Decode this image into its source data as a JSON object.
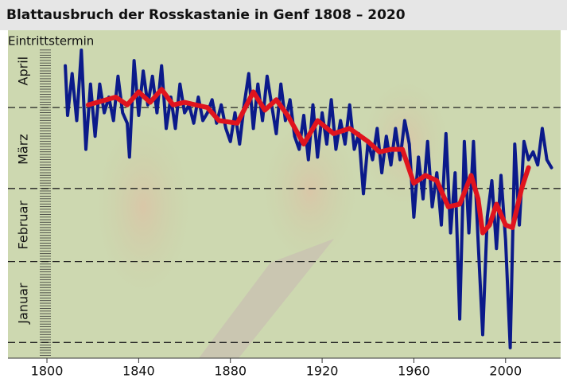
{
  "chart_data": {
    "type": "line",
    "title": "Blattausbruch der Rosskastanie in Genf 1808 – 2020",
    "y_label": "Eintrittstermin",
    "xlim": [
      1783,
      2024
    ],
    "xticks": [
      1800,
      1840,
      1880,
      1920,
      1960,
      2000
    ],
    "ylim": [
      -6,
      119
    ],
    "hlines": [
      0,
      31,
      59,
      90
    ],
    "y_month_labels": [
      {
        "value": 15,
        "label": "Januar"
      },
      {
        "value": 45,
        "label": "Februar"
      },
      {
        "value": 74,
        "label": "März"
      },
      {
        "value": 104,
        "label": "April"
      }
    ],
    "series": [
      {
        "color": "#0b1a8a",
        "x": [
          1808,
          1809,
          1811,
          1813,
          1815,
          1817,
          1819,
          1821,
          1823,
          1825,
          1827,
          1829,
          1831,
          1833,
          1835,
          1836,
          1838,
          1840,
          1842,
          1844,
          1846,
          1848,
          1850,
          1852,
          1854,
          1856,
          1858,
          1860,
          1862,
          1864,
          1866,
          1868,
          1870,
          1872,
          1874,
          1876,
          1878,
          1880,
          1882,
          1884,
          1886,
          1888,
          1890,
          1892,
          1894,
          1896,
          1898,
          1900,
          1902,
          1904,
          1906,
          1908,
          1910,
          1912,
          1914,
          1916,
          1918,
          1920,
          1922,
          1924,
          1926,
          1928,
          1930,
          1932,
          1934,
          1936,
          1938,
          1940,
          1942,
          1944,
          1946,
          1948,
          1950,
          1952,
          1954,
          1956,
          1958,
          1960,
          1962,
          1964,
          1966,
          1968,
          1970,
          1972,
          1974,
          1976,
          1978,
          1980,
          1982,
          1984,
          1986,
          1988,
          1990,
          1992,
          1994,
          1996,
          1998,
          2000,
          2002,
          2004,
          2006,
          2008,
          2010,
          2012,
          2014,
          2016,
          2018,
          2020
        ],
        "values": [
          106,
          87,
          103,
          85,
          112,
          74,
          99,
          79,
          99,
          88,
          94,
          85,
          102,
          88,
          84,
          71,
          108,
          87,
          104,
          91,
          102,
          88,
          106,
          82,
          94,
          82,
          99,
          88,
          91,
          84,
          94,
          85,
          88,
          93,
          84,
          91,
          82,
          77,
          88,
          76,
          91,
          103,
          82,
          99,
          85,
          102,
          91,
          80,
          99,
          85,
          93,
          79,
          74,
          87,
          70,
          91,
          71,
          88,
          76,
          93,
          74,
          85,
          76,
          91,
          74,
          80,
          57,
          77,
          70,
          82,
          65,
          79,
          68,
          82,
          70,
          85,
          76,
          48,
          71,
          55,
          77,
          52,
          65,
          45,
          80,
          42,
          65,
          9,
          77,
          42,
          77,
          39,
          3,
          48,
          62,
          36,
          64,
          39,
          -2,
          76,
          45,
          77,
          70,
          73,
          68,
          82,
          70,
          67
        ]
      },
      {
        "color": "#e0141e",
        "x": [
          1818,
          1830,
          1835,
          1840,
          1845,
          1850,
          1855,
          1860,
          1870,
          1875,
          1883,
          1890,
          1895,
          1900,
          1905,
          1912,
          1918,
          1925,
          1932,
          1940,
          1945,
          1950,
          1955,
          1960,
          1965,
          1970,
          1975,
          1980,
          1985,
          1988,
          1990,
          1993,
          1996,
          2000,
          2003,
          2007,
          2010
        ],
        "values": [
          91,
          94,
          91,
          96,
          92,
          97,
          91,
          92,
          90,
          85,
          84,
          96,
          89,
          93,
          87,
          76,
          85,
          80,
          82,
          77,
          73,
          74,
          74,
          61,
          64,
          62,
          52,
          53,
          64,
          55,
          42,
          45,
          53,
          45,
          44,
          59,
          67
        ]
      }
    ]
  }
}
